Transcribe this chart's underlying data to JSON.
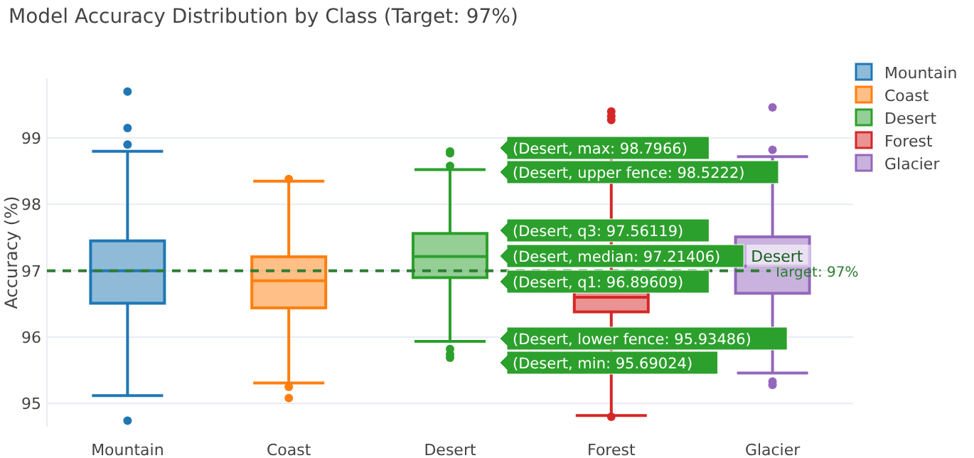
{
  "chart_data": {
    "type": "box",
    "title": "Model Accuracy Distribution by Class (Target: 97%)",
    "ylabel": "Accuracy (%)",
    "categories": [
      "Mountain",
      "Coast",
      "Desert",
      "Forest",
      "Glacier"
    ],
    "series": [
      {
        "name": "Mountain",
        "color": "#1f77b4",
        "boxes": [
          {
            "low": 95.12,
            "q1": 96.51,
            "median": 97.0,
            "q3": 97.45,
            "high": 98.8,
            "outliers": [
              99.7,
              99.15,
              98.9,
              94.74
            ]
          },
          null,
          null,
          null,
          null
        ]
      },
      {
        "name": "Coast",
        "color": "#ff7f0e",
        "boxes": [
          null,
          {
            "low": 95.31,
            "q1": 96.44,
            "median": 96.85,
            "q3": 97.21,
            "high": 98.35,
            "outliers": [
              98.38,
              95.25,
              95.08
            ]
          },
          null,
          null,
          null
        ]
      },
      {
        "name": "Desert",
        "color": "#2ca02c",
        "boxes": [
          null,
          null,
          {
            "low": 95.93486,
            "q1": 96.89609,
            "median": 97.21406,
            "q3": 97.56119,
            "high": 98.5222,
            "outliers": [
              98.7966,
              98.77,
              98.58,
              95.82,
              95.74,
              95.69024
            ]
          },
          null,
          null
        ]
      },
      {
        "name": "Forest",
        "color": "#d62728",
        "boxes": [
          null,
          null,
          null,
          {
            "low": 94.82,
            "q1": 96.38,
            "median": 96.6,
            "q3": 96.85,
            "high": 98.9,
            "outliers": [
              99.4,
              99.33,
              99.27,
              94.8
            ]
          },
          null
        ]
      },
      {
        "name": "Glacier",
        "color": "#9467bd",
        "boxes": [
          null,
          null,
          null,
          null,
          {
            "low": 95.46,
            "q1": 96.66,
            "median": 97.07,
            "q3": 97.51,
            "high": 98.72,
            "outliers": [
              99.46,
              98.82,
              95.33,
              95.28
            ]
          }
        ]
      }
    ],
    "ylim": [
      94.65,
      99.9
    ],
    "yticks": [
      95,
      96,
      97,
      98,
      99
    ],
    "grid": "y",
    "legend": "top right",
    "ref_lines": [
      {
        "axis": "y",
        "value": 97,
        "label": "Target: 97%",
        "color": "#2e7d32",
        "line_style": "dashed"
      }
    ],
    "annotations": [
      "(Desert, max: 98.7966)",
      "(Desert, upper fence: 98.5222)",
      "(Desert, q3: 97.56119)",
      "(Desert, median: 97.21406)",
      "(Desert, q1: 96.89609)",
      "(Desert, lower fence: 95.93486)",
      "(Desert, min: 95.69024)",
      "Desert"
    ]
  }
}
